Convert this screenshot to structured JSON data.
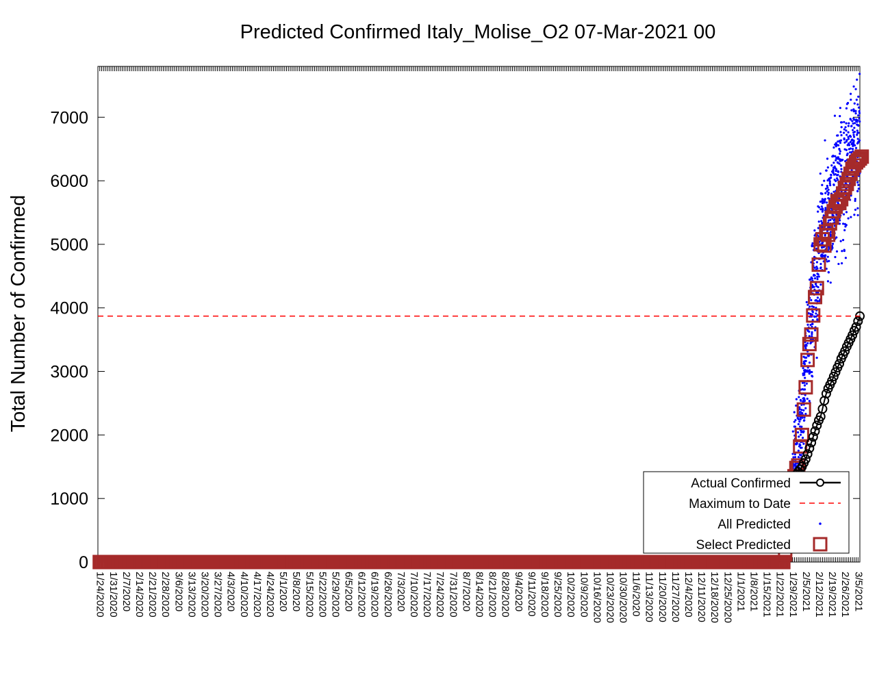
{
  "chart_data": {
    "type": "line",
    "title": "Predicted Confirmed Italy_Molise_O2 07-Mar-2021 00",
    "xlabel": "",
    "ylabel": "Total Number of Confirmed",
    "ylim": [
      0,
      7800
    ],
    "y_ticks": [
      0,
      1000,
      2000,
      3000,
      4000,
      5000,
      6000,
      7000
    ],
    "x_tick_labels": [
      "1/24/2020",
      "1/31/2020",
      "2/7/2020",
      "2/14/2020",
      "2/21/2020",
      "2/28/2020",
      "3/6/2020",
      "3/13/2020",
      "3/20/2020",
      "3/27/2020",
      "4/3/2020",
      "4/10/2020",
      "4/17/2020",
      "4/24/2020",
      "5/1/2020",
      "5/8/2020",
      "5/15/2020",
      "5/22/2020",
      "5/29/2020",
      "6/5/2020",
      "6/12/2020",
      "6/19/2020",
      "6/26/2020",
      "7/3/2020",
      "7/10/2020",
      "7/17/2020",
      "7/24/2020",
      "7/31/2020",
      "8/7/2020",
      "8/14/2020",
      "8/21/2020",
      "8/28/2020",
      "9/4/2020",
      "9/11/2020",
      "9/18/2020",
      "9/25/2020",
      "10/2/2020",
      "10/9/2020",
      "10/16/2020",
      "10/23/2020",
      "10/30/2020",
      "11/6/2020",
      "11/13/2020",
      "11/20/2020",
      "11/27/2020",
      "12/4/2020",
      "12/11/2020",
      "12/18/2020",
      "12/25/2020",
      "1/1/2021",
      "1/8/2021",
      "1/15/2021",
      "1/22/2021",
      "1/29/2021",
      "2/5/2021",
      "2/12/2021",
      "2/19/2021",
      "2/26/2021",
      "3/5/2021"
    ],
    "grid": false,
    "legend_position": "bottom-right",
    "legend": [
      {
        "label": "Actual Confirmed",
        "color": "#000000",
        "marker": "circle-line"
      },
      {
        "label": "Maximum to Date",
        "color": "#ff0000",
        "marker": "dashed-line"
      },
      {
        "label": "All Predicted",
        "color": "#0000ff",
        "marker": "dot"
      },
      {
        "label": "Select Predicted",
        "color": "#a52a2a",
        "marker": "square"
      }
    ],
    "maximum_to_date": 3870,
    "actual_confirmed": {
      "x": [
        "1/31/2021",
        "2/1/2021",
        "2/2/2021",
        "2/3/2021",
        "2/4/2021",
        "2/5/2021",
        "2/6/2021",
        "2/7/2021",
        "2/8/2021",
        "2/9/2021",
        "2/10/2021",
        "2/11/2021",
        "2/12/2021",
        "2/13/2021",
        "2/14/2021",
        "2/15/2021",
        "2/16/2021",
        "2/17/2021",
        "2/18/2021",
        "2/19/2021",
        "2/20/2021",
        "2/21/2021",
        "2/22/2021",
        "2/23/2021",
        "2/24/2021",
        "2/25/2021",
        "2/26/2021",
        "2/27/2021",
        "2/28/2021",
        "3/1/2021",
        "3/2/2021",
        "3/3/2021",
        "3/4/2021",
        "3/5/2021",
        "3/6/2021"
      ],
      "y": [
        1380,
        1420,
        1460,
        1500,
        1560,
        1620,
        1700,
        1790,
        1880,
        1970,
        2060,
        2150,
        2230,
        2290,
        2410,
        2540,
        2650,
        2730,
        2790,
        2850,
        2920,
        2990,
        3060,
        3120,
        3200,
        3260,
        3320,
        3390,
        3450,
        3510,
        3570,
        3640,
        3700,
        3790,
        3870
      ]
    },
    "select_predicted": {
      "x": [
        "1/24/2021",
        "1/25/2021",
        "1/26/2021",
        "1/27/2021",
        "1/28/2021",
        "1/29/2021",
        "1/30/2021",
        "1/31/2021",
        "2/1/2021",
        "2/2/2021",
        "2/3/2021",
        "2/4/2021",
        "2/5/2021",
        "2/6/2021",
        "2/7/2021",
        "2/8/2021",
        "2/9/2021",
        "2/10/2021",
        "2/11/2021",
        "2/12/2021",
        "2/13/2021",
        "2/14/2021",
        "2/15/2021",
        "2/16/2021",
        "2/17/2021",
        "2/18/2021",
        "2/19/2021",
        "2/20/2021",
        "2/21/2021",
        "2/22/2021",
        "2/23/2021",
        "2/24/2021",
        "2/25/2021",
        "2/26/2021",
        "2/27/2021",
        "2/28/2021",
        "3/1/2021",
        "3/2/2021",
        "3/3/2021",
        "3/4/2021",
        "3/5/2021",
        "3/6/2021",
        "3/7/2021"
      ],
      "y": [
        0,
        120,
        300,
        520,
        800,
        1100,
        1350,
        1480,
        1520,
        1820,
        2000,
        2400,
        2750,
        3180,
        3430,
        3580,
        3880,
        4170,
        4310,
        4680,
        5000,
        5080,
        4980,
        5200,
        5150,
        5330,
        5420,
        5520,
        5590,
        5680,
        5650,
        5710,
        5800,
        5890,
        5950,
        6030,
        6110,
        6190,
        6240,
        6290,
        6320,
        6350,
        6380
      ]
    }
  }
}
